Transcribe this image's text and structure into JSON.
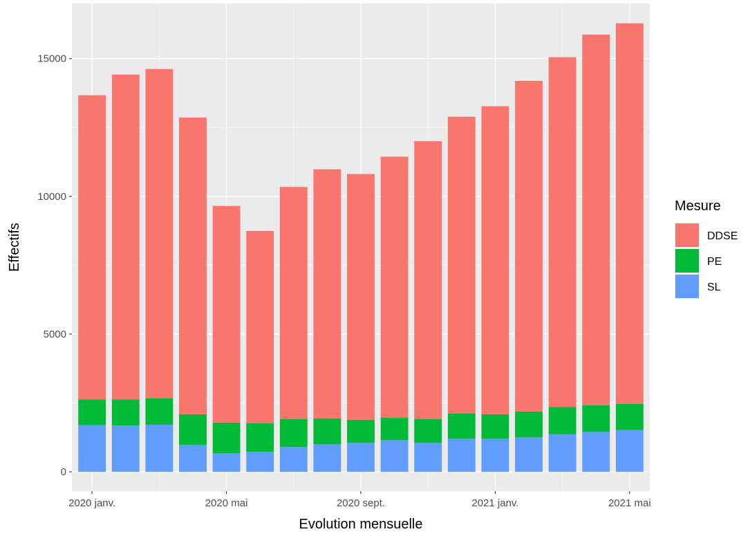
{
  "chart_data": {
    "type": "bar",
    "stacked": true,
    "xlabel": "Evolution mensuelle",
    "ylabel": "Effectifs",
    "ylim": [
      -700,
      17000
    ],
    "yticks": [
      0,
      5000,
      10000,
      15000
    ],
    "ytick_labels": [
      "0",
      "5000",
      "10000",
      "15000"
    ],
    "categories": [
      "2020-01",
      "2020-02",
      "2020-03",
      "2020-04",
      "2020-05",
      "2020-06",
      "2020-07",
      "2020-08",
      "2020-09",
      "2020-10",
      "2020-11",
      "2020-12",
      "2021-01",
      "2021-02",
      "2021-03",
      "2021-04",
      "2021-05"
    ],
    "xtick_labels": [
      {
        "category": "2020-01",
        "label": "2020 janv."
      },
      {
        "category": "2020-05",
        "label": "2020 mai"
      },
      {
        "category": "2020-09",
        "label": "2020 sept."
      },
      {
        "category": "2021-01",
        "label": "2021 janv."
      },
      {
        "category": "2021-05",
        "label": "2021 mai"
      }
    ],
    "legend": {
      "title": "Mesure",
      "placement": "right"
    },
    "grid": true,
    "series": [
      {
        "name": "SL",
        "color": "#619CFF",
        "values": [
          1700,
          1680,
          1710,
          980,
          680,
          730,
          900,
          1000,
          1050,
          1150,
          1050,
          1200,
          1200,
          1250,
          1370,
          1450,
          1520
        ]
      },
      {
        "name": "PE",
        "color": "#00BA38",
        "values": [
          930,
          950,
          960,
          1110,
          1110,
          1030,
          1020,
          940,
          840,
          810,
          870,
          920,
          890,
          940,
          980,
          970,
          950
        ]
      },
      {
        "name": "DDSE",
        "color": "#F8766D",
        "values": [
          11040,
          11790,
          11950,
          10770,
          7860,
          6980,
          8420,
          9040,
          8920,
          9480,
          10080,
          10770,
          11180,
          12000,
          12700,
          13450,
          13810
        ]
      }
    ],
    "legend_order": [
      "DDSE",
      "PE",
      "SL"
    ]
  }
}
